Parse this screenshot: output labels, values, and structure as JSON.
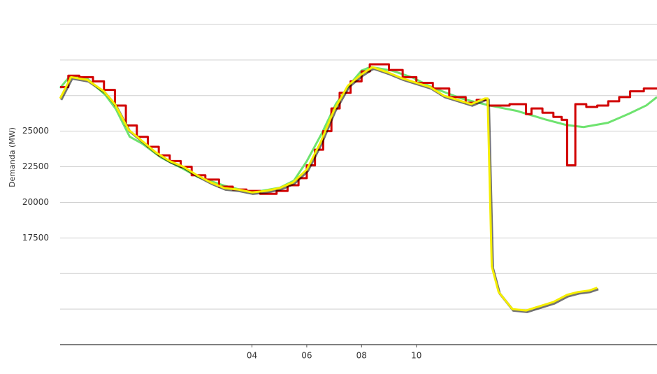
{
  "chart_data": {
    "type": "line",
    "y_label": "Demanda (MW)",
    "xlim": [
      -3,
      18.78
    ],
    "ylim": [
      10000,
      32500
    ],
    "xticks": [
      {
        "value": 4,
        "label": "04"
      },
      {
        "value": 6,
        "label": "06"
      },
      {
        "value": 8,
        "label": "08"
      },
      {
        "value": 10,
        "label": "10"
      }
    ],
    "yticks": [
      17500,
      20000,
      22500,
      25000
    ],
    "ygrid": [
      10000,
      12500,
      15000,
      17500,
      20000,
      22500,
      25000,
      27500,
      30000,
      32500
    ],
    "grid": true,
    "series": [
      {
        "color": "#6ee36f",
        "step": false,
        "shadow": false,
        "x": [
          -3,
          -2.64,
          -2,
          -1.35,
          -0.97,
          -0.46,
          0,
          0.69,
          1.45,
          2,
          2.98,
          4,
          5.02,
          5.53,
          6,
          6.55,
          7.06,
          7.57,
          8,
          8.33,
          9.1,
          9.86,
          10.62,
          11.64,
          12.66,
          13.68,
          14.7,
          15.46,
          16.1,
          16.99,
          17.76,
          18.39,
          18.78
        ],
        "values": [
          28040,
          28870,
          28680,
          27550,
          26570,
          24610,
          24120,
          23140,
          22400,
          21810,
          21180,
          20690,
          21030,
          21520,
          22890,
          24850,
          26910,
          28280,
          29260,
          29510,
          29260,
          28770,
          28040,
          27300,
          26810,
          26420,
          25830,
          25440,
          25290,
          25590,
          26230,
          26810,
          27400
        ]
      },
      {
        "color": "#d10000",
        "step": true,
        "shadow": false,
        "x": [
          -3,
          -2.7,
          -2.3,
          -1.8,
          -1.4,
          -1.0,
          -0.6,
          -0.2,
          0.2,
          0.6,
          1.0,
          1.4,
          1.8,
          2.3,
          2.8,
          3.3,
          3.8,
          4.3,
          4.9,
          5.3,
          5.7,
          6.0,
          6.3,
          6.6,
          6.9,
          7.2,
          7.6,
          8.0,
          8.3,
          9.0,
          9.5,
          10.0,
          10.6,
          11.2,
          11.8,
          12.2,
          12.6,
          13.4,
          14.0,
          14.2,
          14.6,
          15.0,
          15.3,
          15.5,
          15.8,
          16.2,
          16.6,
          17.0,
          17.4,
          17.8,
          18.3
        ],
        "values": [
          28100,
          28900,
          28800,
          28500,
          27900,
          26800,
          25400,
          24600,
          23900,
          23300,
          22900,
          22500,
          21900,
          21600,
          21100,
          20900,
          20800,
          20600,
          20800,
          21200,
          21700,
          22600,
          23700,
          25000,
          26600,
          27700,
          28500,
          29200,
          29700,
          29300,
          28800,
          28400,
          28000,
          27400,
          27000,
          27200,
          26800,
          26900,
          26200,
          26600,
          26300,
          26000,
          25800,
          22600,
          26900,
          26700,
          26800,
          27100,
          27400,
          27800,
          28000
        ]
      },
      {
        "color": "#f5ee00",
        "step": false,
        "shadow": true,
        "x": [
          -3,
          -2.6,
          -2,
          -1.4,
          -1,
          -0.5,
          0,
          0.5,
          1,
          1.5,
          2,
          2.5,
          3,
          3.5,
          4,
          4.5,
          5,
          5.5,
          6,
          6.5,
          7,
          7.5,
          8,
          8.4,
          9,
          9.5,
          10,
          10.5,
          11,
          11.5,
          12,
          12.5,
          12.6,
          12.75,
          13.0,
          13.5,
          14.0,
          14.5,
          15.0,
          15.5,
          15.9,
          16.3,
          16.6
        ],
        "values": [
          27300,
          28800,
          28600,
          27800,
          26900,
          25100,
          24300,
          23500,
          22900,
          22500,
          21900,
          21400,
          21000,
          20900,
          20700,
          20800,
          21000,
          21400,
          22300,
          24200,
          26500,
          28200,
          29000,
          29500,
          29100,
          28700,
          28400,
          28100,
          27500,
          27200,
          26900,
          27300,
          27300,
          15500,
          13700,
          12500,
          12400,
          12700,
          13000,
          13500,
          13700,
          13800,
          14000
        ]
      }
    ]
  }
}
